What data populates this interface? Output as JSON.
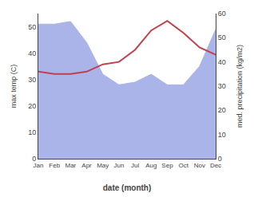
{
  "chart_data": {
    "type": "line",
    "categories": [
      "Jan",
      "Feb",
      "Mar",
      "Apr",
      "May",
      "Jun",
      "Jul",
      "Aug",
      "Sep",
      "Oct",
      "Nov",
      "Dec"
    ],
    "series": [
      {
        "type": "area",
        "color": "#aab4e8",
        "values": [
          51,
          51,
          52,
          44,
          32,
          28,
          29,
          32,
          28,
          28,
          35,
          49
        ]
      },
      {
        "type": "line",
        "color": "#c0414e",
        "axis": "y2",
        "values": [
          36,
          35,
          35,
          36,
          39,
          40,
          45,
          53,
          57,
          52,
          46,
          43
        ]
      }
    ],
    "xlabel": "date (month)",
    "ylabel": "max temp (C)",
    "y2label": "med. precipitation (kg/m2)",
    "ylim": [
      0,
      55
    ],
    "yticks": [
      0,
      10,
      20,
      30,
      40,
      50
    ],
    "y2lim": [
      0,
      60
    ],
    "y2ticks": [
      0,
      10,
      20,
      30,
      40,
      50,
      60
    ],
    "grid": false,
    "legend": false
  }
}
